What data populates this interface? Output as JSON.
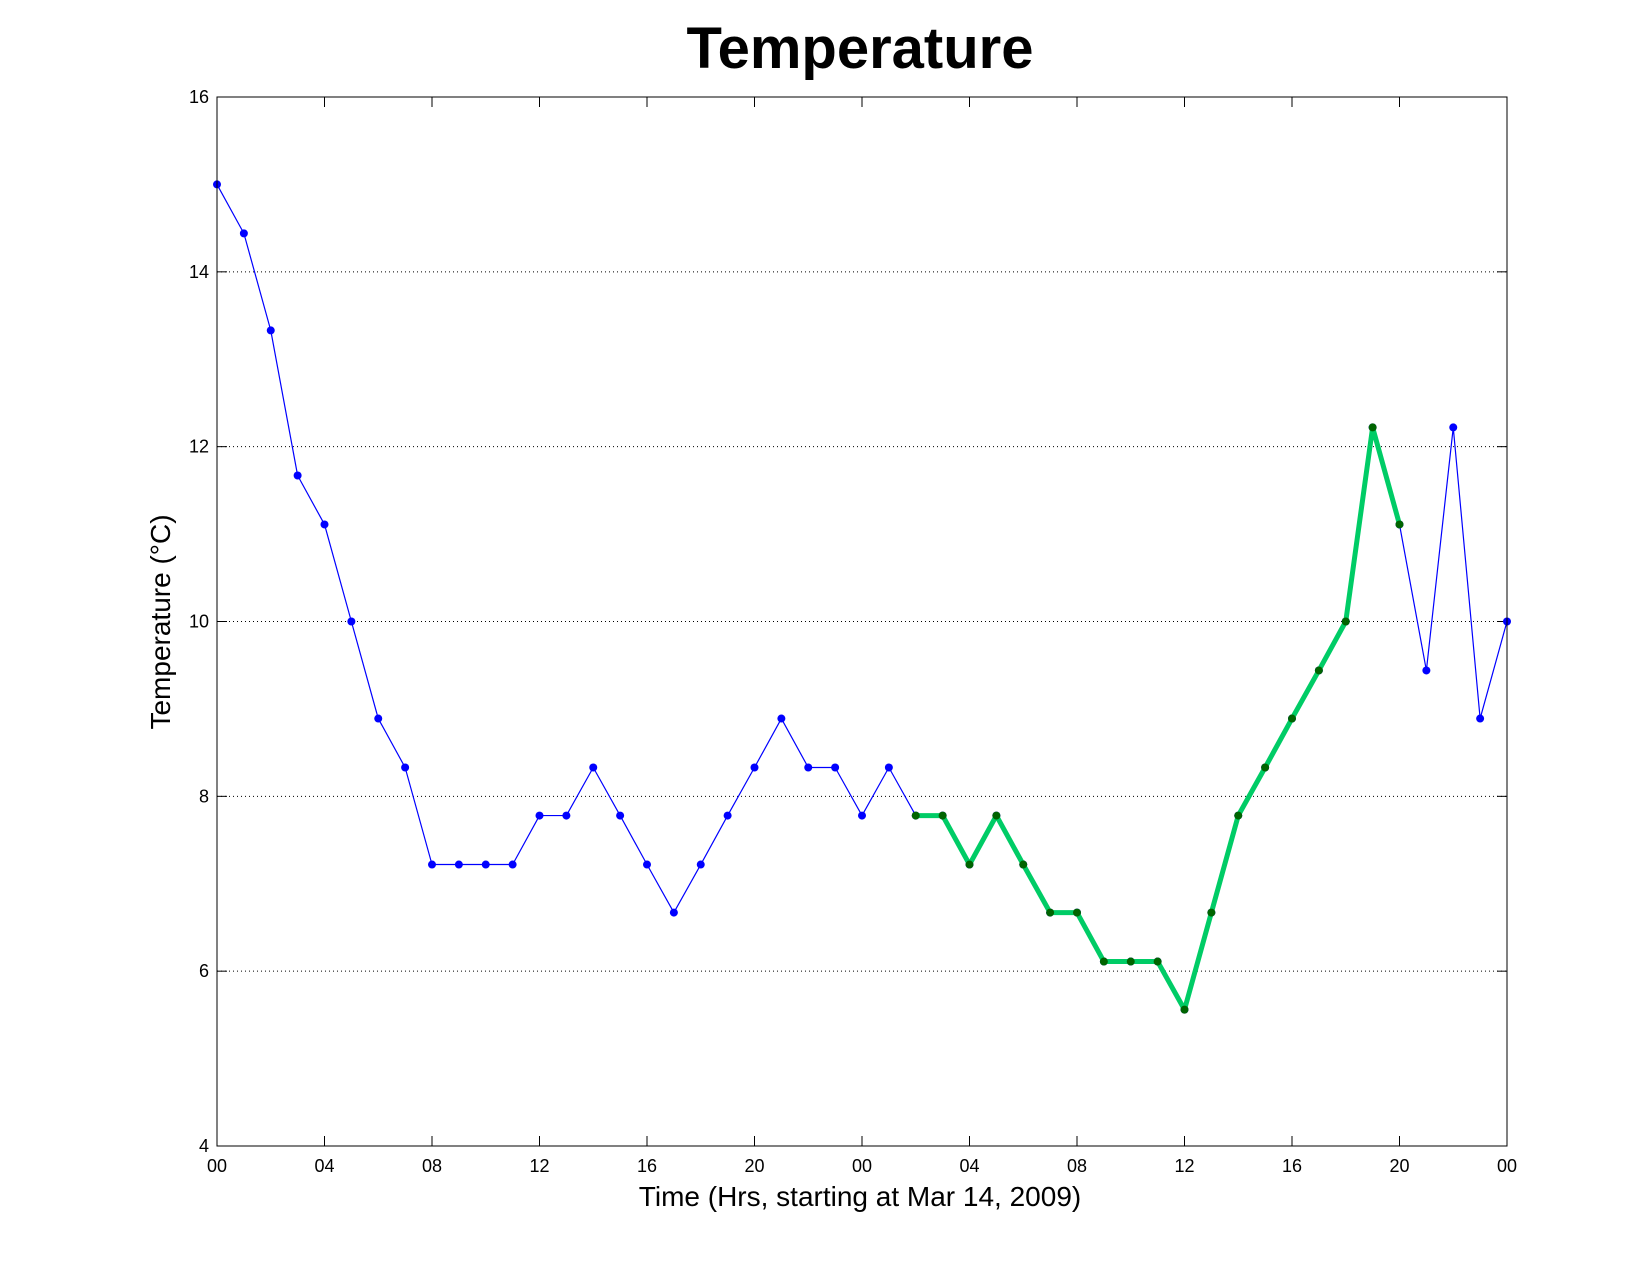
{
  "chart_data": {
    "type": "line",
    "title": "Temperature",
    "xlabel": "Time (Hrs, starting at Mar 14, 2009)",
    "ylabel": "Temperature (°C)",
    "xlim": [
      0,
      48
    ],
    "ylim": [
      4,
      16
    ],
    "x_tick_values": [
      0,
      4,
      8,
      12,
      16,
      20,
      24,
      28,
      32,
      36,
      40,
      44,
      48
    ],
    "x_tick_labels": [
      "00",
      "04",
      "08",
      "12",
      "16",
      "20",
      "00",
      "04",
      "08",
      "12",
      "16",
      "20",
      "00"
    ],
    "y_ticks": [
      4,
      6,
      8,
      10,
      12,
      14,
      16
    ],
    "grid": "y-dotted",
    "series": [
      {
        "color": "#0000ff",
        "x": [
          0,
          1,
          2,
          3,
          4,
          5,
          6,
          7,
          8,
          9,
          10,
          11,
          12,
          13,
          14,
          15,
          16,
          17,
          18,
          19,
          20,
          21,
          22,
          23,
          24,
          25,
          26,
          27,
          28,
          29,
          30,
          31,
          32,
          33,
          34,
          35,
          36,
          37,
          38,
          39,
          40,
          41,
          42,
          43,
          44,
          45,
          46,
          47,
          48
        ],
        "values": [
          15.0,
          14.44,
          13.33,
          11.67,
          11.11,
          10.0,
          8.89,
          8.33,
          7.22,
          7.22,
          7.22,
          7.22,
          7.78,
          7.78,
          8.33,
          7.78,
          7.22,
          6.67,
          7.22,
          7.78,
          8.33,
          8.89,
          8.33,
          8.33,
          7.78,
          8.33,
          7.78,
          7.78,
          7.22,
          7.78,
          7.22,
          6.67,
          6.67,
          6.11,
          6.11,
          6.11,
          5.56,
          6.67,
          7.78,
          8.33,
          8.89,
          9.44,
          10.0,
          12.22,
          11.11,
          9.44,
          12.22,
          8.89,
          10.0
        ]
      },
      {
        "color": "#00cc66",
        "marker_color": "#006400",
        "x": [
          26,
          27,
          28,
          29,
          30,
          31,
          32,
          33,
          34,
          35,
          36,
          37,
          38,
          39,
          40,
          41,
          42,
          43,
          44
        ],
        "values": [
          7.78,
          7.78,
          7.22,
          7.78,
          7.22,
          6.67,
          6.67,
          6.11,
          6.11,
          6.11,
          5.56,
          6.67,
          7.78,
          8.33,
          8.89,
          9.44,
          10.0,
          12.22,
          11.11
        ]
      }
    ]
  }
}
